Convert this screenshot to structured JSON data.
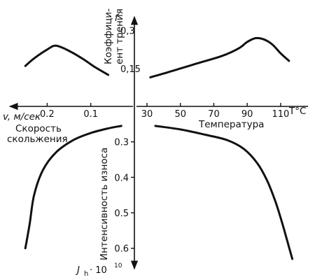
{
  "chart_data": {
    "type": "line",
    "axis_labels": {
      "friction_symbol": "f",
      "friction_name_line1": "Коэффици-",
      "friction_name_line2": "ент трения",
      "wear_name": "Интенсивность износа",
      "wear_symbol": "J",
      "wear_symbol_sub": "h",
      "wear_multiplier": "· 10",
      "wear_multiplier_exp": "10",
      "speed_symbol": "v, м/сек",
      "speed_name_line1": "Скорость",
      "speed_name_line2": "скольжения",
      "temp_name": "Температура",
      "temp_symbol": "T°C"
    },
    "ticks": {
      "speed": [
        "0.2",
        "0.1"
      ],
      "temperature": [
        "30",
        "50",
        "70",
        "90",
        "110"
      ],
      "friction": [
        "0,15",
        "0,3"
      ],
      "wear": [
        "0.3",
        "0.4",
        "0.5",
        "0.6"
      ]
    },
    "scales": {
      "speed": {
        "values": [
          0.2,
          0.1
        ],
        "min": 0,
        "max": 0.26
      },
      "temperature": {
        "values": [
          30,
          50,
          70,
          90,
          110
        ],
        "min": 30,
        "max": 118
      },
      "friction": {
        "values": [
          0.15,
          0.3
        ],
        "min": 0,
        "max": 0.36
      },
      "wear": {
        "values": [
          0.3,
          0.4,
          0.5,
          0.6
        ],
        "min": 0.2,
        "max": 0.65
      }
    },
    "series": [
      {
        "quadrant": "speed-friction",
        "x": [
          0.25,
          0.23,
          0.2,
          0.18,
          0.15,
          0.12,
          0.09,
          0.06
        ],
        "y": [
          0.16,
          0.19,
          0.225,
          0.24,
          0.22,
          0.19,
          0.155,
          0.125
        ]
      },
      {
        "quadrant": "temperature-friction",
        "x": [
          32,
          45,
          60,
          75,
          85,
          90,
          95,
          100,
          105,
          110,
          115
        ],
        "y": [
          0.115,
          0.14,
          0.17,
          0.2,
          0.23,
          0.255,
          0.27,
          0.265,
          0.245,
          0.21,
          0.18
        ]
      },
      {
        "quadrant": "speed-wear",
        "x": [
          0.25,
          0.24,
          0.23,
          0.21,
          0.18,
          0.14,
          0.1,
          0.06,
          0.03
        ],
        "y": [
          0.6,
          0.53,
          0.45,
          0.38,
          0.33,
          0.295,
          0.275,
          0.262,
          0.255
        ]
      },
      {
        "quadrant": "temperature-wear",
        "x": [
          35,
          50,
          65,
          78,
          88,
          96,
          102,
          107,
          111,
          114,
          117
        ],
        "y": [
          0.255,
          0.265,
          0.28,
          0.295,
          0.32,
          0.36,
          0.41,
          0.47,
          0.53,
          0.58,
          0.63
        ]
      }
    ]
  }
}
